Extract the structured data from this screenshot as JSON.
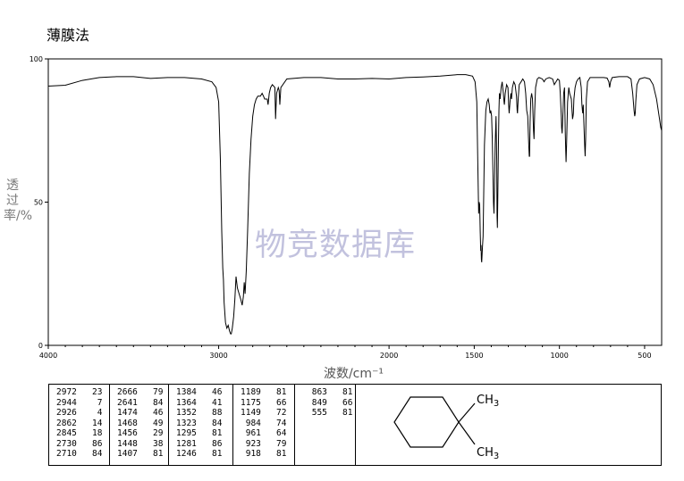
{
  "header": {
    "method": "薄膜法"
  },
  "watermark": "物竞数据库",
  "chart_data": {
    "type": "line",
    "ylabel": "透过率/%",
    "xlabel": "波数/cm⁻¹",
    "xlim": [
      4000,
      400
    ],
    "ylim": [
      0,
      100
    ],
    "x_ticks": [
      "4000",
      "3000",
      "2000",
      "1500",
      "1000",
      "500"
    ],
    "x_tick_values": [
      4000,
      3000,
      2000,
      1500,
      1000,
      500
    ],
    "y_ticks": [
      "0",
      "50",
      "100"
    ],
    "y_tick_values": [
      0,
      50,
      100
    ],
    "series": [
      {
        "color": "#000000",
        "points": [
          [
            4000,
            90.5
          ],
          [
            3900,
            90.8
          ],
          [
            3800,
            92.5
          ],
          [
            3700,
            93.5
          ],
          [
            3600,
            93.8
          ],
          [
            3500,
            93.8
          ],
          [
            3400,
            93.2
          ],
          [
            3300,
            93.5
          ],
          [
            3200,
            93.5
          ],
          [
            3100,
            93
          ],
          [
            3040,
            92
          ],
          [
            3015,
            90
          ],
          [
            3000,
            85
          ],
          [
            2990,
            65
          ],
          [
            2982,
            40
          ],
          [
            2976,
            27
          ],
          [
            2972,
            23
          ],
          [
            2968,
            15
          ],
          [
            2960,
            8
          ],
          [
            2952,
            6
          ],
          [
            2944,
            7
          ],
          [
            2936,
            5
          ],
          [
            2930,
            4
          ],
          [
            2926,
            4
          ],
          [
            2920,
            6
          ],
          [
            2912,
            10
          ],
          [
            2905,
            16
          ],
          [
            2898,
            24
          ],
          [
            2890,
            20
          ],
          [
            2880,
            18
          ],
          [
            2870,
            16
          ],
          [
            2862,
            14
          ],
          [
            2855,
            17
          ],
          [
            2850,
            22
          ],
          [
            2845,
            18
          ],
          [
            2838,
            26
          ],
          [
            2830,
            40
          ],
          [
            2820,
            60
          ],
          [
            2810,
            72
          ],
          [
            2800,
            80
          ],
          [
            2790,
            84
          ],
          [
            2780,
            86
          ],
          [
            2770,
            87
          ],
          [
            2755,
            87
          ],
          [
            2745,
            88
          ],
          [
            2737,
            87
          ],
          [
            2730,
            86
          ],
          [
            2722,
            86
          ],
          [
            2715,
            86
          ],
          [
            2710,
            84
          ],
          [
            2703,
            88
          ],
          [
            2695,
            90
          ],
          [
            2685,
            91
          ],
          [
            2670,
            90
          ],
          [
            2666,
            79
          ],
          [
            2660,
            88
          ],
          [
            2650,
            90
          ],
          [
            2645,
            89
          ],
          [
            2641,
            84
          ],
          [
            2635,
            90
          ],
          [
            2600,
            93
          ],
          [
            2500,
            93.5
          ],
          [
            2400,
            93.5
          ],
          [
            2300,
            93
          ],
          [
            2200,
            93
          ],
          [
            2100,
            93.2
          ],
          [
            2000,
            93
          ],
          [
            1900,
            93.5
          ],
          [
            1800,
            93.7
          ],
          [
            1700,
            94
          ],
          [
            1600,
            94.5
          ],
          [
            1550,
            94.5
          ],
          [
            1510,
            94
          ],
          [
            1495,
            92
          ],
          [
            1485,
            85
          ],
          [
            1478,
            60
          ],
          [
            1474,
            46
          ],
          [
            1471,
            50
          ],
          [
            1468,
            49
          ],
          [
            1465,
            40
          ],
          [
            1462,
            33
          ],
          [
            1460,
            35
          ],
          [
            1458,
            30
          ],
          [
            1456,
            29
          ],
          [
            1452,
            34
          ],
          [
            1448,
            38
          ],
          [
            1445,
            50
          ],
          [
            1440,
            70
          ],
          [
            1432,
            82
          ],
          [
            1425,
            85
          ],
          [
            1418,
            86
          ],
          [
            1412,
            84
          ],
          [
            1409,
            82
          ],
          [
            1407,
            81
          ],
          [
            1403,
            82
          ],
          [
            1398,
            80
          ],
          [
            1394,
            72
          ],
          [
            1390,
            60
          ],
          [
            1387,
            50
          ],
          [
            1384,
            46
          ],
          [
            1381,
            55
          ],
          [
            1377,
            70
          ],
          [
            1372,
            80
          ],
          [
            1368,
            65
          ],
          [
            1366,
            45
          ],
          [
            1364,
            41
          ],
          [
            1362,
            50
          ],
          [
            1358,
            70
          ],
          [
            1355,
            82
          ],
          [
            1352,
            88
          ],
          [
            1348,
            86
          ],
          [
            1342,
            90
          ],
          [
            1336,
            92
          ],
          [
            1329,
            88
          ],
          [
            1325,
            85
          ],
          [
            1323,
            84
          ],
          [
            1318,
            88
          ],
          [
            1310,
            91
          ],
          [
            1302,
            90
          ],
          [
            1298,
            84
          ],
          [
            1295,
            81
          ],
          [
            1290,
            85
          ],
          [
            1285,
            88
          ],
          [
            1281,
            86
          ],
          [
            1276,
            90
          ],
          [
            1268,
            92
          ],
          [
            1260,
            91
          ],
          [
            1252,
            87
          ],
          [
            1248,
            82
          ],
          [
            1246,
            81
          ],
          [
            1242,
            86
          ],
          [
            1236,
            91
          ],
          [
            1225,
            92
          ],
          [
            1215,
            93
          ],
          [
            1205,
            92
          ],
          [
            1198,
            88
          ],
          [
            1192,
            82
          ],
          [
            1189,
            81
          ],
          [
            1186,
            80
          ],
          [
            1180,
            70
          ],
          [
            1177,
            66
          ],
          [
            1175,
            66
          ],
          [
            1172,
            78
          ],
          [
            1168,
            86
          ],
          [
            1163,
            88
          ],
          [
            1158,
            86
          ],
          [
            1152,
            75
          ],
          [
            1149,
            72
          ],
          [
            1145,
            82
          ],
          [
            1140,
            90
          ],
          [
            1130,
            93
          ],
          [
            1120,
            93.5
          ],
          [
            1100,
            93
          ],
          [
            1090,
            92
          ],
          [
            1080,
            93
          ],
          [
            1060,
            93.5
          ],
          [
            1040,
            93
          ],
          [
            1030,
            91
          ],
          [
            1020,
            92
          ],
          [
            1010,
            93
          ],
          [
            1000,
            92.5
          ],
          [
            995,
            88
          ],
          [
            989,
            80
          ],
          [
            987,
            76
          ],
          [
            984,
            74
          ],
          [
            980,
            80
          ],
          [
            975,
            88
          ],
          [
            970,
            90
          ],
          [
            966,
            75
          ],
          [
            963,
            68
          ],
          [
            961,
            64
          ],
          [
            958,
            70
          ],
          [
            952,
            85
          ],
          [
            945,
            90
          ],
          [
            940,
            88
          ],
          [
            930,
            86
          ],
          [
            926,
            82
          ],
          [
            923,
            79
          ],
          [
            920,
            80
          ],
          [
            918,
            81
          ],
          [
            915,
            86
          ],
          [
            908,
            90
          ],
          [
            900,
            92
          ],
          [
            890,
            93
          ],
          [
            880,
            93.5
          ],
          [
            872,
            90
          ],
          [
            868,
            84
          ],
          [
            865,
            82
          ],
          [
            863,
            81
          ],
          [
            860,
            84
          ],
          [
            855,
            75
          ],
          [
            852,
            70
          ],
          [
            849,
            66
          ],
          [
            846,
            72
          ],
          [
            842,
            86
          ],
          [
            835,
            92
          ],
          [
            820,
            93.5
          ],
          [
            780,
            93.5
          ],
          [
            740,
            93.5
          ],
          [
            720,
            93.3
          ],
          [
            710,
            92
          ],
          [
            705,
            90
          ],
          [
            700,
            92
          ],
          [
            690,
            93.5
          ],
          [
            650,
            93.8
          ],
          [
            600,
            93.8
          ],
          [
            580,
            93
          ],
          [
            570,
            88
          ],
          [
            562,
            82
          ],
          [
            558,
            80
          ],
          [
            555,
            81
          ],
          [
            552,
            85
          ],
          [
            545,
            91
          ],
          [
            530,
            93
          ],
          [
            500,
            93.5
          ],
          [
            470,
            93
          ],
          [
            450,
            91
          ],
          [
            430,
            86
          ],
          [
            415,
            80
          ],
          [
            405,
            76
          ],
          [
            400,
            75
          ]
        ]
      }
    ],
    "peaks": [
      [
        "2972",
        "23"
      ],
      [
        "2944",
        "7"
      ],
      [
        "2926",
        "4"
      ],
      [
        "2862",
        "14"
      ],
      [
        "2845",
        "18"
      ],
      [
        "2730",
        "86"
      ],
      [
        "2710",
        "84"
      ],
      [
        "2666",
        "79"
      ],
      [
        "2641",
        "84"
      ],
      [
        "1474",
        "46"
      ],
      [
        "1468",
        "49"
      ],
      [
        "1456",
        "29"
      ],
      [
        "1448",
        "38"
      ],
      [
        "1407",
        "81"
      ],
      [
        "1384",
        "46"
      ],
      [
        "1364",
        "41"
      ],
      [
        "1352",
        "88"
      ],
      [
        "1323",
        "84"
      ],
      [
        "1295",
        "81"
      ],
      [
        "1281",
        "86"
      ],
      [
        "1246",
        "81"
      ],
      [
        "1189",
        "81"
      ],
      [
        "1175",
        "66"
      ],
      [
        "1149",
        "72"
      ],
      [
        "984",
        "74"
      ],
      [
        "961",
        "64"
      ],
      [
        "923",
        "79"
      ],
      [
        "918",
        "81"
      ],
      [
        "863",
        "81"
      ],
      [
        "849",
        "66"
      ],
      [
        "555",
        "81"
      ]
    ]
  },
  "structure": {
    "label_top": "CH3",
    "label_bottom": "CH3"
  }
}
